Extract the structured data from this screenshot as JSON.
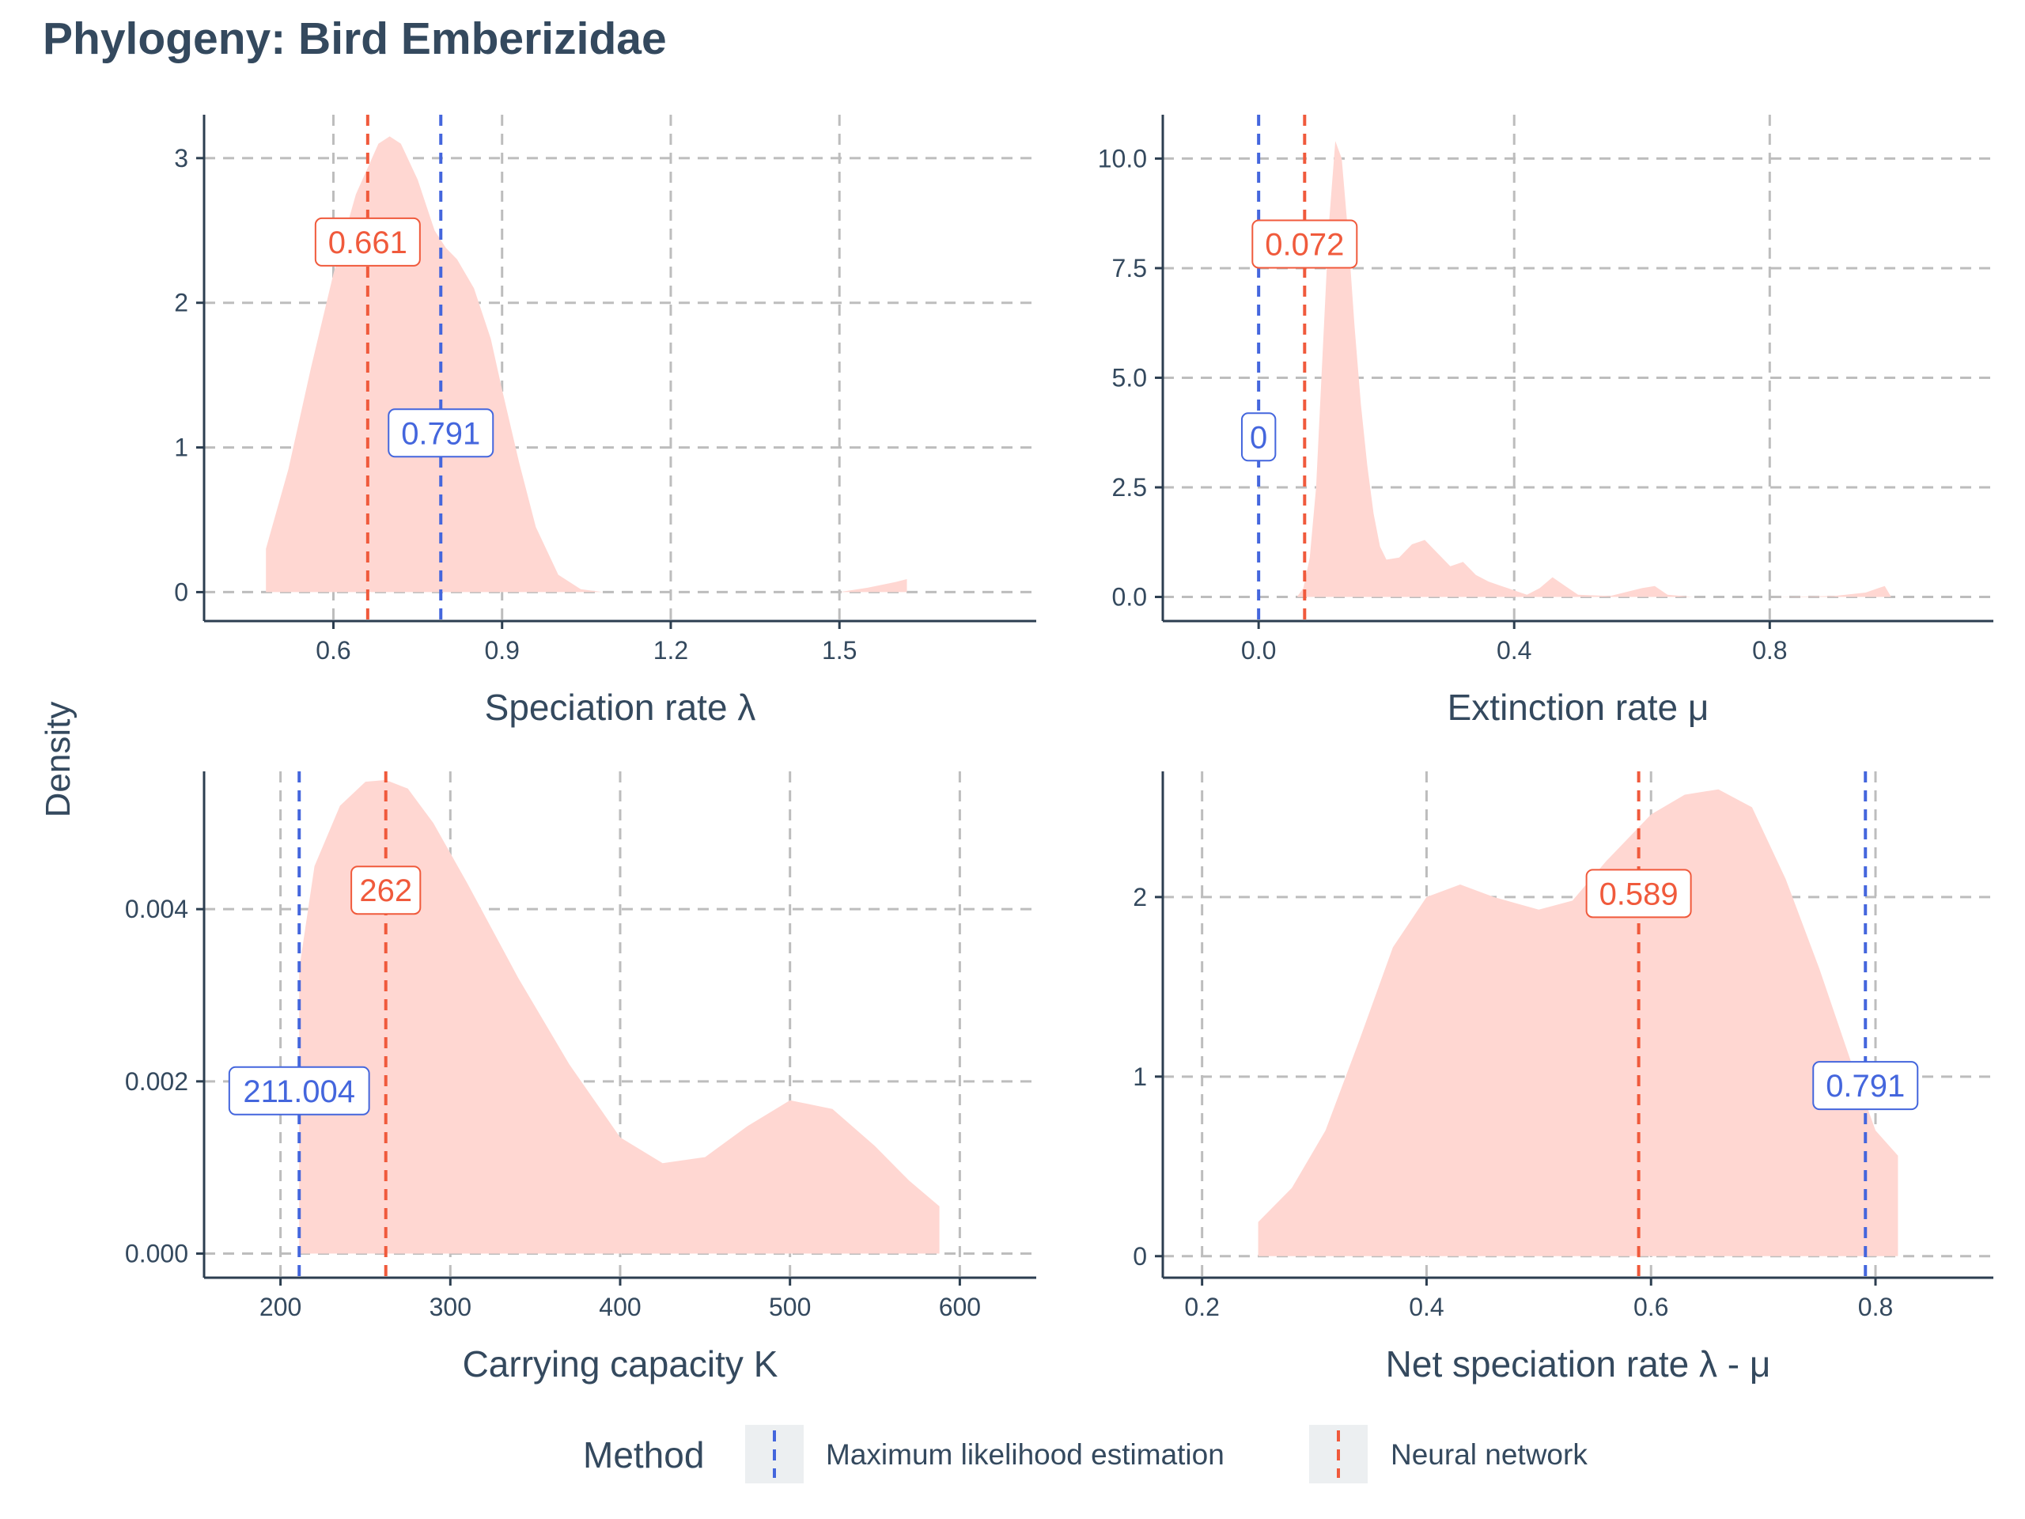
{
  "title": "Phylogeny: Bird Emberizidae",
  "y_label": "Density",
  "colors": {
    "text": "#34495e",
    "axis": "#2c3e50",
    "grid": "#bdbdbd",
    "density_fill": "#ffd7d2",
    "mle": "#4466dd",
    "nn": "#f05a3c",
    "legend_key_bg": "#eceff1"
  },
  "legend": {
    "title": "Method",
    "items": [
      {
        "label": "Maximum likelihood estimation",
        "color_key": "mle"
      },
      {
        "label": "Neural network",
        "color_key": "nn"
      }
    ]
  },
  "chart_data": [
    {
      "type": "area",
      "xlabel": "Speciation rate λ",
      "xlim": [
        0.37,
        1.85
      ],
      "ylim": [
        -0.2,
        3.3
      ],
      "xticks": [
        0.6,
        0.9,
        1.2,
        1.5
      ],
      "xtick_labels": [
        "0.6",
        "0.9",
        "1.2",
        "1.5"
      ],
      "yticks": [
        0,
        1,
        2,
        3
      ],
      "ytick_labels": [
        "0",
        "1",
        "2",
        "3"
      ],
      "density": {
        "x": [
          0.48,
          0.48,
          0.52,
          0.56,
          0.6,
          0.64,
          0.68,
          0.7,
          0.72,
          0.75,
          0.78,
          0.8,
          0.82,
          0.85,
          0.88,
          0.9,
          0.93,
          0.96,
          1.0,
          1.04,
          1.06,
          1.08
        ],
        "y": [
          0,
          0.3,
          0.85,
          1.55,
          2.2,
          2.75,
          3.1,
          3.15,
          3.1,
          2.85,
          2.5,
          2.38,
          2.3,
          2.1,
          1.75,
          1.4,
          0.9,
          0.45,
          0.12,
          0.02,
          0.01,
          0
        ]
      },
      "tail": {
        "x": [
          1.5,
          1.55,
          1.6,
          1.62,
          1.62
        ],
        "y": [
          0,
          0.03,
          0.07,
          0.09,
          0
        ]
      },
      "vlines": [
        {
          "method": "mle",
          "x": 0.791,
          "label": "0.791",
          "label_y": 1.1
        },
        {
          "method": "nn",
          "x": 0.661,
          "label": "0.661",
          "label_y": 2.42
        }
      ]
    },
    {
      "type": "area",
      "xlabel": "Extinction rate μ",
      "xlim": [
        -0.15,
        1.15
      ],
      "ylim": [
        -0.55,
        11.0
      ],
      "xticks": [
        0.0,
        0.4,
        0.8
      ],
      "xtick_labels": [
        "0.0",
        "0.4",
        "0.8"
      ],
      "yticks": [
        0,
        2.5,
        5,
        7.5,
        10
      ],
      "ytick_labels": [
        "0.0",
        "2.5",
        "5.0",
        "7.5",
        "10.0"
      ],
      "density": {
        "x": [
          0.06,
          0.07,
          0.08,
          0.09,
          0.1,
          0.11,
          0.12,
          0.13,
          0.14,
          0.15,
          0.16,
          0.17,
          0.18,
          0.19,
          0.2,
          0.22,
          0.24,
          0.26,
          0.28,
          0.3,
          0.32,
          0.34,
          0.36,
          0.38,
          0.4,
          0.42,
          0.44,
          0.46,
          0.48,
          0.5,
          0.55,
          0.6,
          0.62,
          0.64,
          0.68,
          0.8,
          0.9,
          0.95,
          0.97,
          0.98,
          0.99
        ],
        "y": [
          0,
          0.2,
          0.9,
          2.5,
          5.5,
          8.5,
          10.4,
          10.0,
          8.3,
          6.2,
          4.4,
          3.0,
          1.9,
          1.15,
          0.85,
          0.9,
          1.2,
          1.3,
          1.0,
          0.7,
          0.8,
          0.5,
          0.35,
          0.25,
          0.15,
          0.05,
          0.2,
          0.45,
          0.25,
          0.05,
          0.02,
          0.2,
          0.25,
          0.05,
          0,
          0,
          0.02,
          0.1,
          0.2,
          0.25,
          0
        ]
      },
      "vlines": [
        {
          "method": "mle",
          "x": 0,
          "label": "0",
          "label_y": 3.65
        },
        {
          "method": "nn",
          "x": 0.072,
          "label": "0.072",
          "label_y": 8.05
        }
      ]
    },
    {
      "type": "area",
      "xlabel": "Carrying capacity K",
      "xlim": [
        155,
        645
      ],
      "ylim": [
        -0.00028,
        0.0056
      ],
      "xticks": [
        200,
        300,
        400,
        500,
        600
      ],
      "xtick_labels": [
        "200",
        "300",
        "400",
        "500",
        "600"
      ],
      "yticks": [
        0,
        0.002,
        0.004
      ],
      "ytick_labels": [
        "0.000",
        "0.002",
        "0.004"
      ],
      "density": {
        "x": [
          211,
          211,
          220,
          235,
          250,
          262,
          275,
          290,
          310,
          340,
          370,
          400,
          425,
          450,
          475,
          500,
          525,
          550,
          570,
          588,
          588
        ],
        "y": [
          0,
          0.0033,
          0.0045,
          0.0052,
          0.00548,
          0.0055,
          0.0054,
          0.005,
          0.0043,
          0.0032,
          0.0022,
          0.00135,
          0.00105,
          0.00112,
          0.00148,
          0.00178,
          0.00168,
          0.00125,
          0.00085,
          0.00055,
          0
        ]
      },
      "vlines": [
        {
          "method": "mle",
          "x": 211.004,
          "label": "211.004",
          "label_y": 0.00189
        },
        {
          "method": "nn",
          "x": 262,
          "label": "262",
          "label_y": 0.00422
        }
      ]
    },
    {
      "type": "area",
      "xlabel": "Net speciation rate λ - μ",
      "xlim": [
        0.165,
        0.905
      ],
      "ylim": [
        -0.12,
        2.7
      ],
      "xticks": [
        0.2,
        0.4,
        0.6,
        0.8
      ],
      "xtick_labels": [
        "0.2",
        "0.4",
        "0.6",
        "0.8"
      ],
      "yticks": [
        0,
        1,
        2
      ],
      "ytick_labels": [
        "0",
        "1",
        "2"
      ],
      "density": {
        "x": [
          0.25,
          0.25,
          0.28,
          0.31,
          0.34,
          0.37,
          0.4,
          0.43,
          0.46,
          0.5,
          0.53,
          0.56,
          0.6,
          0.63,
          0.66,
          0.69,
          0.72,
          0.75,
          0.78,
          0.8,
          0.82,
          0.82
        ],
        "y": [
          0,
          0.19,
          0.38,
          0.7,
          1.2,
          1.72,
          2.0,
          2.07,
          2.0,
          1.93,
          1.98,
          2.2,
          2.46,
          2.57,
          2.6,
          2.5,
          2.1,
          1.6,
          1.05,
          0.7,
          0.56,
          0
        ]
      },
      "vlines": [
        {
          "method": "mle",
          "x": 0.791,
          "label": "0.791",
          "label_y": 0.95
        },
        {
          "method": "nn",
          "x": 0.589,
          "label": "0.589",
          "label_y": 2.02
        }
      ]
    }
  ]
}
